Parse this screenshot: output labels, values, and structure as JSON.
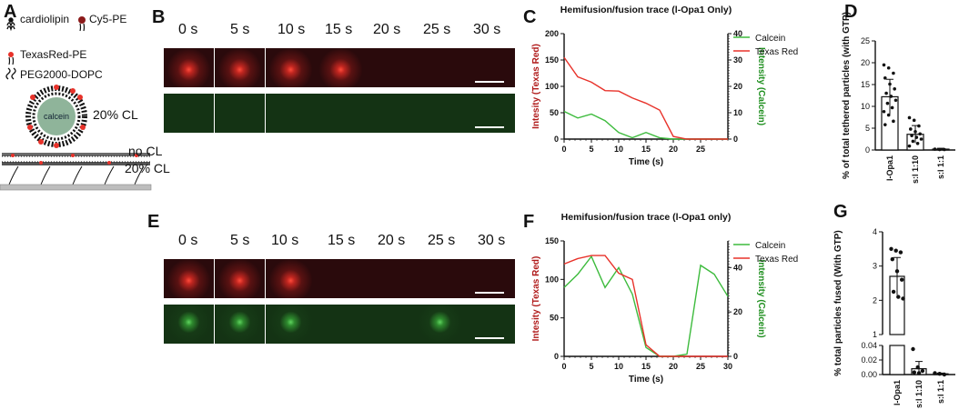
{
  "panels": {
    "A": {
      "label": "A",
      "legend": [
        "cardiolipin",
        "Cy5-PE",
        "TexasRed-PE",
        "PEG2000-DOPC"
      ],
      "vesicle_core": "calcein",
      "vesicle_label": "20% CL",
      "bilayer_labels": [
        "no CL",
        "20% CL"
      ]
    },
    "B": {
      "label": "B",
      "times": [
        "0 s",
        "5 s",
        "10 s",
        "15 s",
        "20 s",
        "25 s",
        "30 s"
      ],
      "red_spot": [
        1,
        1,
        1,
        1,
        0,
        0,
        0
      ],
      "green_spot": [
        0,
        0,
        0,
        0,
        0,
        0,
        0
      ]
    },
    "E": {
      "label": "E",
      "times": [
        "0 s",
        "5 s",
        "10 s",
        "15 s",
        "20 s",
        "25 s",
        "30 s"
      ],
      "red_spot": [
        1,
        1,
        1,
        0,
        0,
        0,
        0
      ],
      "green_spot": [
        1,
        1,
        1,
        0,
        0,
        1,
        0
      ]
    },
    "C": {
      "label": "C"
    },
    "F": {
      "label": "F"
    },
    "D": {
      "label": "D"
    },
    "G": {
      "label": "G"
    }
  },
  "colors": {
    "red": "#e8322a",
    "green": "#3dbb3d",
    "darkred": "#b01a1a",
    "darkgreen": "#1f8f1f"
  },
  "chart_data": [
    {
      "id": "C",
      "type": "line",
      "title": "Hemifusion/fusion trace (l-Opa1 Only)",
      "xlabel": "Time (s)",
      "ylabel_left": "Intesity (Texas Red)",
      "ylabel_right": "Intensity (Calcein)",
      "xlim": [
        0,
        30
      ],
      "ylim_left": [
        0,
        200
      ],
      "ylim_right": [
        0,
        40
      ],
      "xticks": [
        0,
        5,
        10,
        15,
        20,
        25
      ],
      "yticks_left": [
        0,
        50,
        100,
        150,
        200
      ],
      "yticks_right": [
        0,
        10,
        20,
        30,
        40
      ],
      "series": [
        {
          "name": "Calcein",
          "axis": "right",
          "color": "#3dbb3d",
          "x": [
            0,
            2.5,
            5,
            7.5,
            10,
            12.5,
            15,
            17.5,
            20,
            22.5,
            25,
            27.5,
            30
          ],
          "y": [
            10.5,
            8,
            9.5,
            7,
            2.5,
            0.5,
            2.5,
            0.5,
            0,
            0,
            0,
            0,
            0
          ]
        },
        {
          "name": "Texas Red",
          "axis": "left",
          "color": "#e8322a",
          "x": [
            0,
            2.5,
            5,
            7.5,
            10,
            12.5,
            15,
            17.5,
            20,
            22.5,
            25,
            27.5,
            30
          ],
          "y": [
            155,
            118,
            108,
            92,
            91,
            78,
            68,
            55,
            5,
            0,
            0,
            0,
            0
          ]
        }
      ]
    },
    {
      "id": "F",
      "type": "line",
      "title": "Hemifusion/fusion trace (l-Opa1 only)",
      "xlabel": "Time (s)",
      "ylabel_left": "Intesity (Texas Red)",
      "ylabel_right": "Intensity (Calcein)",
      "xlim": [
        0,
        30
      ],
      "ylim_left": [
        0,
        150
      ],
      "ylim_right": [
        0,
        52
      ],
      "xticks": [
        0,
        5,
        10,
        15,
        20,
        25,
        30
      ],
      "yticks_left": [
        0,
        50,
        100,
        150
      ],
      "yticks_right": [
        0,
        20,
        40
      ],
      "series": [
        {
          "name": "Calcein",
          "axis": "right",
          "color": "#3dbb3d",
          "x": [
            0,
            2.5,
            5,
            7.5,
            10,
            12.5,
            15,
            17.5,
            20,
            22.5,
            25,
            27.5,
            30
          ],
          "y": [
            31,
            37,
            45,
            31,
            40,
            28,
            4,
            0,
            0,
            1,
            41,
            37,
            27
          ]
        },
        {
          "name": "Texas Red",
          "axis": "left",
          "color": "#e8322a",
          "x": [
            0,
            2.5,
            5,
            7.5,
            10,
            12.5,
            15,
            17.5,
            20,
            22.5,
            25,
            27.5,
            30
          ],
          "y": [
            120,
            127,
            131,
            131,
            108,
            100,
            15,
            0,
            0,
            0,
            0,
            0,
            0
          ]
        }
      ]
    },
    {
      "id": "D",
      "type": "bar",
      "ylabel": "% of total tethered particles  (with GTP)",
      "categories": [
        "l-Opa1",
        "s:l 1:10",
        "s:l 1:1"
      ],
      "values": [
        12.2,
        3.6,
        0.2
      ],
      "errors": [
        4.0,
        2.0,
        0.2
      ],
      "ylim": [
        0,
        25
      ],
      "yticks": [
        0,
        5,
        10,
        15,
        20,
        25
      ],
      "points": [
        [
          19.5,
          18.8,
          17.6,
          16.5,
          15.1,
          14.0,
          13.0,
          12.3,
          11.4,
          10.7,
          9.7,
          8.8,
          8.0,
          6.6,
          5.8
        ],
        [
          7.4,
          6.8,
          5.5,
          4.8,
          4.2,
          3.7,
          3.3,
          2.9,
          2.5,
          2.0,
          1.5,
          0.9
        ],
        [
          0.2,
          0.1,
          0.1
        ]
      ]
    },
    {
      "id": "G",
      "type": "bar",
      "ylabel": "% total particles fused (With GTP)",
      "categories": [
        "l-Opa1",
        "s:l 1:10",
        "s:l 1:1"
      ],
      "values": [
        2.7,
        0.008,
        0.001
      ],
      "errors": [
        0.55,
        0.01,
        0.001
      ],
      "ylim_upper": [
        1,
        4
      ],
      "ylim_lower": [
        0,
        0.04
      ],
      "yticks_upper": [
        1,
        2,
        3,
        4
      ],
      "yticks_lower": [
        0.0,
        0.02,
        0.04
      ],
      "points": [
        [
          3.5,
          3.45,
          3.4,
          3.2,
          2.85,
          2.6,
          2.25,
          2.1,
          2.05
        ],
        [
          0.035,
          0.01,
          0.005,
          0.003,
          0.002
        ],
        [
          0.002,
          0.001,
          0.0
        ]
      ]
    }
  ]
}
